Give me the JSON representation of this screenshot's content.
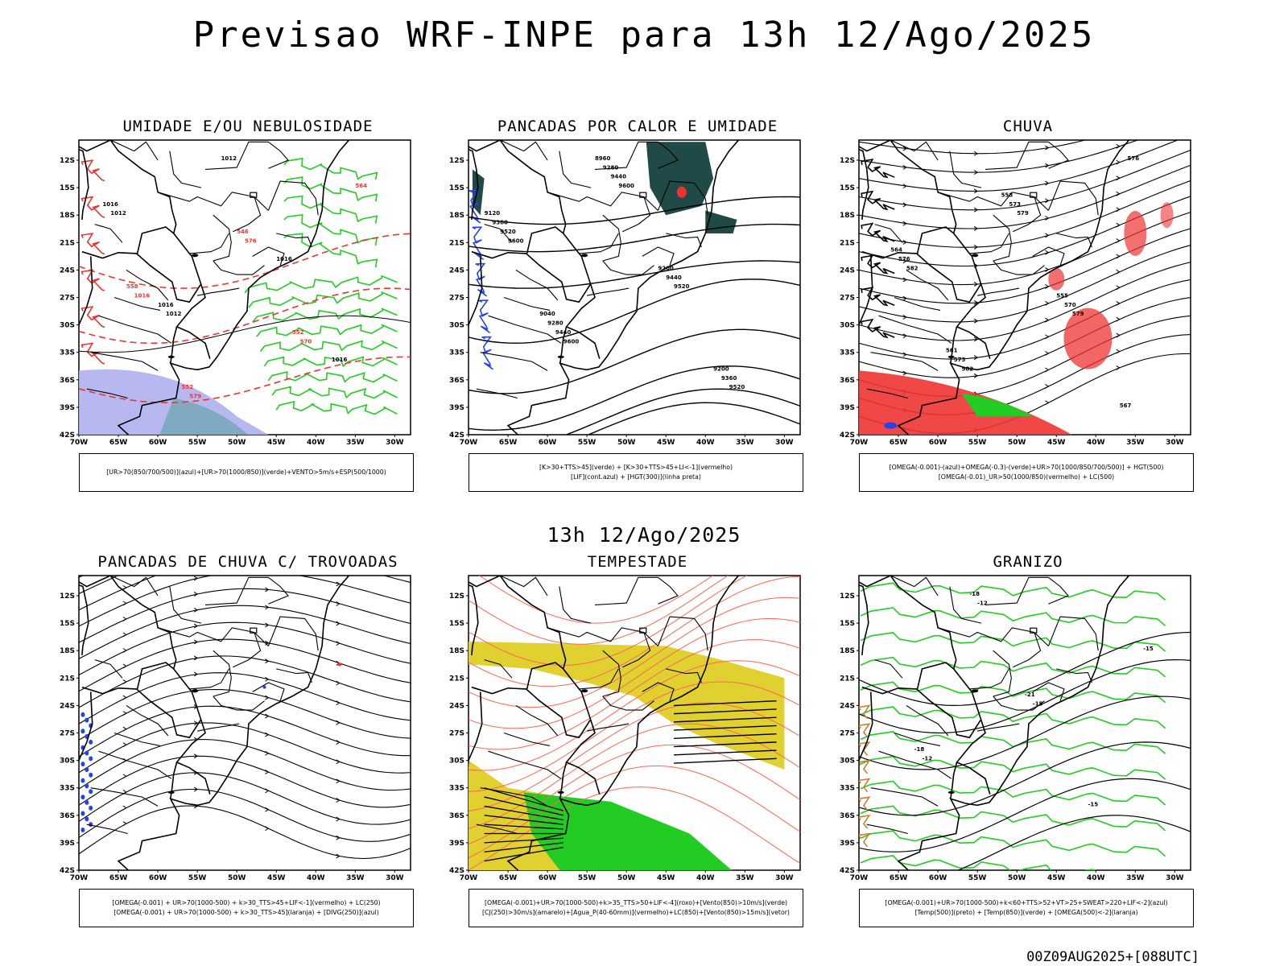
{
  "header": {
    "title": "Previsao WRF-INPE  para 13h 12/Ago/2025",
    "subtitle": "13h 12/Ago/2025",
    "footer": "00Z09AUG2025+[088UTC]"
  },
  "axes": {
    "lat_labels": [
      "12S",
      "15S",
      "18S",
      "21S",
      "24S",
      "27S",
      "30S",
      "33S",
      "36S",
      "39S",
      "42S"
    ],
    "lon_labels": [
      "70W",
      "65W",
      "60W",
      "55W",
      "50W",
      "45W",
      "40W",
      "35W",
      "30W"
    ]
  },
  "panels": [
    {
      "title": "UMIDADE E/OU NEBULOSIDADE",
      "legend": [
        "[UR>70(850/700/500)](azul)+[UR>70(1000/850)](verde)+VENTO>5m/s+ESP(500/1000)"
      ],
      "labels": [
        "1012",
        "1012",
        "1012",
        "1016",
        "1016",
        "1016",
        "1016",
        "1016",
        "579",
        "576",
        "570",
        "564",
        "558",
        "552",
        "546",
        "552"
      ]
    },
    {
      "title": "PANCADAS POR CALOR E UMIDADE",
      "legend": [
        "[K>30+TTS>45](verde) + [K>30+TTS>45+LI<-1](vermelho)",
        "[LIF](cont.azul) + [HGT(300)](linha preta)"
      ],
      "labels": [
        "9600",
        "9600",
        "9600",
        "9520",
        "9520",
        "9520",
        "9440",
        "9440",
        "9440",
        "9360",
        "9360",
        "9280",
        "9280",
        "9200",
        "9200",
        "9120",
        "9040",
        "8960"
      ]
    },
    {
      "title": "CHUVA",
      "legend": [
        "[OMEGA(-0.001)-(azul)+OMEGA(-0.3)-(verde)+UR>70(1000/850/700/500)] + HGT(500)",
        "[OMEGA(-0.01)_UR>50(1000/850)(vermelho) + LC(500)"
      ],
      "labels": [
        "582",
        "582",
        "579",
        "579",
        "576",
        "576",
        "573",
        "573",
        "570",
        "567",
        "564",
        "561",
        "558",
        "555"
      ]
    },
    {
      "title": "PANCADAS DE CHUVA C/ TROVOADAS",
      "legend": [
        "[OMEGA(-0.001) + UR>70(1000-500) + k>30_TTS>45+LIF<-1](vermelho) + LC(250)",
        "[OMEGA(-0.001) + UR>70(1000-500) + k>30_TTS>45](laranja) + [DIVG(250)](azul)"
      ],
      "labels": []
    },
    {
      "title": "TEMPESTADE",
      "legend": [
        "[OMEGA(-0.001)+UR>70(1000-500)+k>35_TTS>50+LIF<-4](roxo)+[Vento(850)>10m/s](verde)",
        "[CJ(250)>30m/s](amarelo)+[Agua_P(40-60mm)](vermelho)+LC(850)+[Vento(850)>15m/s](vetor)"
      ],
      "labels": []
    },
    {
      "title": "GRANIZO",
      "legend": [
        "[OMEGA(-0.001)+UR>70(1000-500)+k<60+TTS>52+VT>25+SWEAT>220+LIF<-2](azul)",
        "[Temp(500)](preto) + [Temp(850)](verde) + [OMEGA(500)<-2](laranja)"
      ],
      "labels": [
        "-12",
        "-12",
        "-15",
        "-15",
        "-15",
        "-18",
        "-18",
        "-21"
      ]
    }
  ],
  "colors": {
    "coast": "#000000",
    "blue_fill": "#b0b0f0",
    "green": "#22cc22",
    "red": "#ee3333",
    "dark_teal": "#1f4a48",
    "yellow": "#e0d030",
    "stream_red": "#ff6655",
    "blue_dots": "#2244ee"
  }
}
